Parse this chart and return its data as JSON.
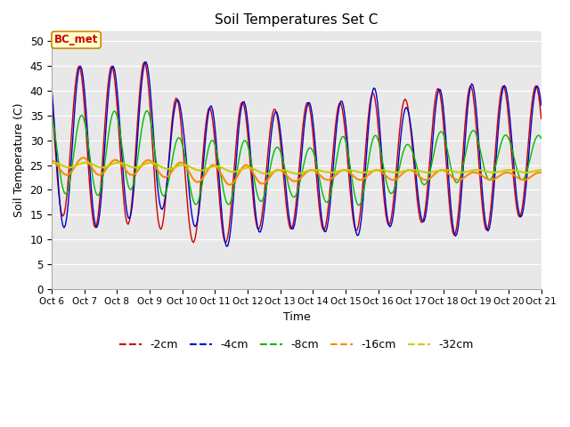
{
  "title": "Soil Temperatures Set C",
  "xlabel": "Time",
  "ylabel": "Soil Temperature (C)",
  "ylim": [
    0,
    52
  ],
  "yticks": [
    0,
    5,
    10,
    15,
    20,
    25,
    30,
    35,
    40,
    45,
    50
  ],
  "fig_bg": "#ffffff",
  "plot_bg": "#e8e8e8",
  "grid_color": "#ffffff",
  "series_colors": {
    "-2cm": "#cc0000",
    "-4cm": "#0000cc",
    "-8cm": "#00bb00",
    "-16cm": "#ff8800",
    "-32cm": "#cccc00"
  },
  "annotation_text": "BC_met",
  "annotation_bg": "#ffffcc",
  "annotation_border": "#cc8800",
  "annotation_text_color": "#cc0000",
  "tick_labels": [
    "Oct 6",
    "Oct 7",
    "Oct 8",
    "Oct 9",
    "Oct 10",
    "Oct 11",
    "Oct 12",
    "Oct 13",
    "Oct 14",
    "Oct 15",
    "Oct 16",
    "Oct 17",
    "Oct 18",
    "Oct 19",
    "Oct 20",
    "Oct 21"
  ],
  "legend_labels": [
    "-2cm",
    "-4cm",
    "-8cm",
    "-16cm",
    "-32cm"
  ],
  "n_days": 15,
  "hours_per_day": 24,
  "peak2": [
    45,
    45,
    45,
    46,
    37,
    36.5,
    38,
    36,
    38,
    37.5,
    40,
    38,
    41,
    41,
    41
  ],
  "trough2": [
    16,
    12,
    13,
    13,
    10,
    8,
    12,
    12,
    12,
    11.5,
    12,
    14.5,
    11,
    10.5,
    14.5
  ],
  "peak4": [
    45,
    45,
    45,
    46,
    37,
    37,
    38,
    35.5,
    38,
    38,
    41,
    36,
    41,
    41.5,
    41
  ],
  "trough4": [
    12.5,
    12,
    13,
    16,
    16,
    7,
    11,
    12,
    12,
    10.5,
    11,
    15,
    11,
    10,
    14.5
  ],
  "peak8": [
    36,
    35,
    36,
    36,
    30,
    30,
    30,
    28.5,
    28.5,
    31,
    31,
    29,
    32,
    32,
    31
  ],
  "trough8": [
    20,
    18,
    20,
    20,
    17,
    17,
    17,
    18.5,
    18.5,
    16,
    18,
    21,
    21,
    22,
    22
  ],
  "peak16": [
    26,
    26.5,
    26,
    26,
    25.5,
    25,
    25,
    24,
    24,
    24,
    24,
    24,
    24,
    23.5,
    23.5
  ],
  "trough16": [
    23,
    23,
    23,
    23,
    22,
    21,
    21,
    21.5,
    22,
    22,
    22,
    22,
    22,
    22,
    22
  ],
  "peak32": [
    25.5,
    25.5,
    25.5,
    25.5,
    25,
    24.8,
    24.5,
    24,
    24,
    24,
    24,
    24,
    24,
    24,
    24
  ],
  "trough32": [
    24.5,
    24.5,
    24.5,
    24.5,
    24,
    23.8,
    23.5,
    23,
    23.5,
    23.5,
    23.5,
    23.5,
    23.5,
    23.5,
    23.5
  ],
  "peak_hour2": 14,
  "peak_hour4": 15,
  "peak_hour8": 16,
  "peak_hour16": 17,
  "peak_hour32": 19
}
